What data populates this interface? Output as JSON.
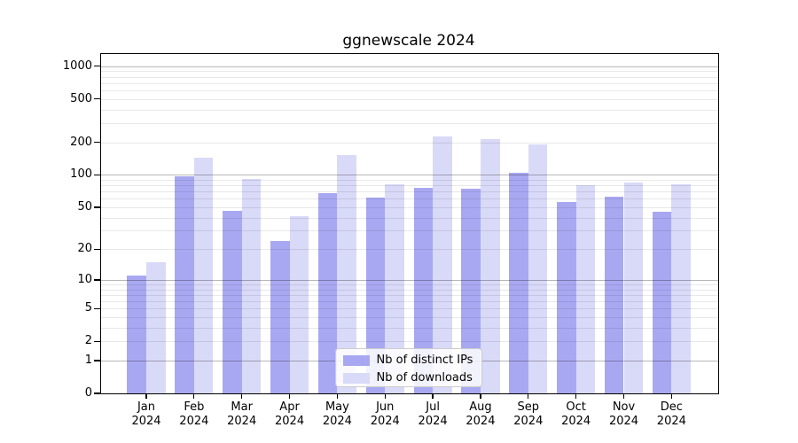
{
  "title": "ggnewscale 2024",
  "chart_data": {
    "type": "bar",
    "title": "ggnewscale 2024",
    "categories": [
      "Jan\n2024",
      "Feb\n2024",
      "Mar\n2024",
      "Apr\n2024",
      "May\n2024",
      "Jun\n2024",
      "Jul\n2024",
      "Aug\n2024",
      "Sep\n2024",
      "Oct\n2024",
      "Nov\n2024",
      "Dec\n2024"
    ],
    "series": [
      {
        "name": "Nb of distinct IPs",
        "color": "#a8a8f2",
        "values": [
          11,
          97,
          46,
          24,
          68,
          62,
          76,
          74,
          105,
          56,
          63,
          45
        ]
      },
      {
        "name": "Nb of downloads",
        "color": "#d9d9f8",
        "values": [
          15,
          145,
          92,
          41,
          153,
          82,
          228,
          212,
          190,
          80,
          85,
          82
        ]
      }
    ],
    "xlabel": "",
    "ylabel": "",
    "y_scale": "pseudo-log log10(1+v)",
    "y_ticks": [
      0,
      1,
      2,
      5,
      10,
      20,
      50,
      100,
      200,
      500,
      1000
    ],
    "y_strong_gridlines": [
      1,
      10,
      100,
      1000
    ],
    "y_minor_gridlines": [
      3,
      4,
      6,
      7,
      8,
      9,
      30,
      40,
      60,
      70,
      80,
      90,
      300,
      400,
      600,
      700,
      800,
      900
    ],
    "ylim": [
      0,
      1332
    ],
    "grid": "on",
    "legend_position": "bottom-center",
    "colors": {
      "background": "#ffffff",
      "axis": "#000000",
      "grid_light": "#e8e8e8",
      "grid_strong": "#b6b6b6"
    }
  }
}
